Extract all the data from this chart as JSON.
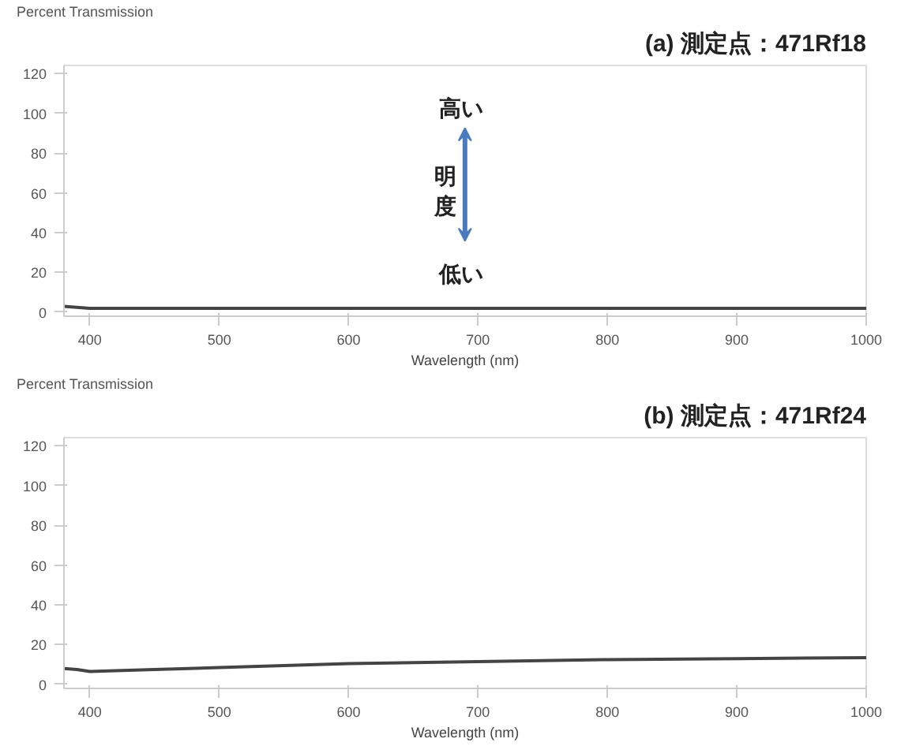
{
  "chart_data": [
    {
      "type": "line",
      "title": "(a) 測定点：471Rf18",
      "ylabel": "Percent Transmission",
      "xlabel": "Wavelength (nm)",
      "xlim": [
        380,
        1000
      ],
      "ylim": [
        -2,
        124
      ],
      "xticks": [
        400,
        500,
        600,
        700,
        800,
        900,
        1000
      ],
      "yticks": [
        0,
        20,
        40,
        60,
        80,
        100,
        120
      ],
      "grid": false,
      "annotations": [
        "高い",
        "明度",
        "低い"
      ],
      "series": [
        {
          "color": "#444444",
          "x": [
            380,
            390,
            400,
            450,
            500,
            600,
            700,
            800,
            900,
            1000
          ],
          "values": [
            3,
            2.5,
            2,
            2,
            2,
            2,
            2,
            2,
            2,
            2
          ]
        }
      ]
    },
    {
      "type": "line",
      "title": "(b) 測定点：471Rf24",
      "ylabel": "Percent Transmission",
      "xlabel": "Wavelength (nm)",
      "xlim": [
        380,
        1000
      ],
      "ylim": [
        -2,
        124
      ],
      "xticks": [
        400,
        500,
        600,
        700,
        800,
        900,
        1000
      ],
      "yticks": [
        0,
        20,
        40,
        60,
        80,
        100,
        120
      ],
      "grid": false,
      "series": [
        {
          "color": "#444444",
          "x": [
            380,
            390,
            400,
            450,
            500,
            600,
            700,
            800,
            900,
            1000
          ],
          "values": [
            8,
            7.5,
            6.5,
            7.5,
            8.5,
            10.5,
            11.5,
            12.5,
            13,
            13.5
          ]
        }
      ]
    }
  ]
}
